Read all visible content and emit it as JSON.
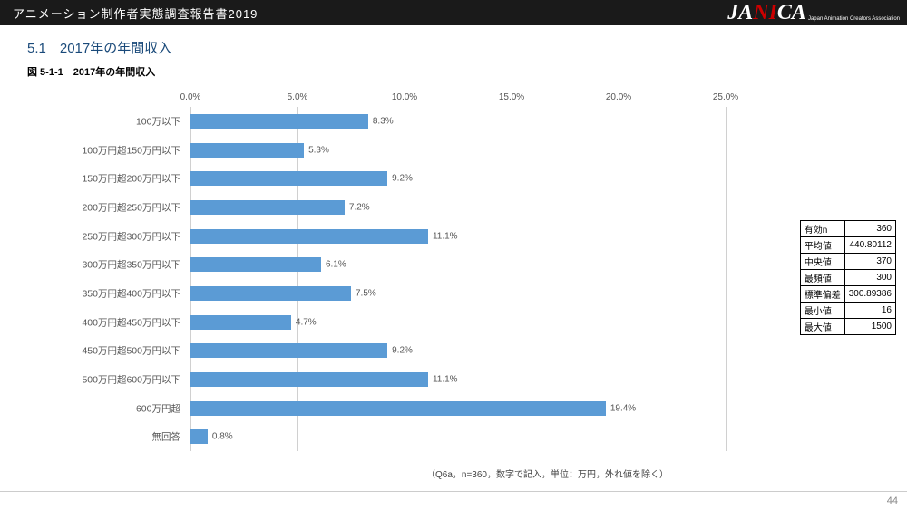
{
  "header": {
    "title": "アニメーション制作者実態調査報告書2019",
    "logo_prefix": "J",
    "logo_mid1": "A",
    "logo_red": "NI",
    "logo_mid2": "C",
    "logo_suffix": "A",
    "logo_sub": "Japan Animation Creators Association"
  },
  "section_title": "5.1　2017年の年間収入",
  "figure_title": "図 5-1-1　2017年の年間収入",
  "chart": {
    "type": "bar-horizontal",
    "xmin": 0.0,
    "xmax": 25.0,
    "xtick_step": 5.0,
    "xtick_format_suffix": "%",
    "bar_color": "#5b9bd5",
    "grid_color": "#d0d0d0",
    "background_color": "#ffffff",
    "label_fontsize": 10.5,
    "value_fontsize": 10,
    "categories": [
      "100万以下",
      "100万円超150万円以下",
      "150万円超200万円以下",
      "200万円超250万円以下",
      "250万円超300万円以下",
      "300万円超350万円以下",
      "350万円超400万円以下",
      "400万円超450万円以下",
      "450万円超500万円以下",
      "500万円超600万円以下",
      "600万円超",
      "無回答"
    ],
    "values": [
      8.3,
      5.3,
      9.2,
      7.2,
      11.1,
      6.1,
      7.5,
      4.7,
      9.2,
      11.1,
      19.4,
      0.8
    ],
    "value_labels": [
      "8.3%",
      "5.3%",
      "9.2%",
      "7.2%",
      "11.1%",
      "6.1%",
      "7.5%",
      "4.7%",
      "9.2%",
      "11.1%",
      "19.4%",
      "0.8%"
    ]
  },
  "note": "（Q6a，n=360，数字で記入，単位：万円，外れ値を除く）",
  "stats": {
    "rows": [
      {
        "label": "有効n",
        "value": "360"
      },
      {
        "label": "平均値",
        "value": "440.80112"
      },
      {
        "label": "中央値",
        "value": "370"
      },
      {
        "label": "最頻値",
        "value": "300"
      },
      {
        "label": "標準偏差",
        "value": "300.89386"
      },
      {
        "label": "最小値",
        "value": "16"
      },
      {
        "label": "最大値",
        "value": "1500"
      }
    ]
  },
  "page_number": "44"
}
